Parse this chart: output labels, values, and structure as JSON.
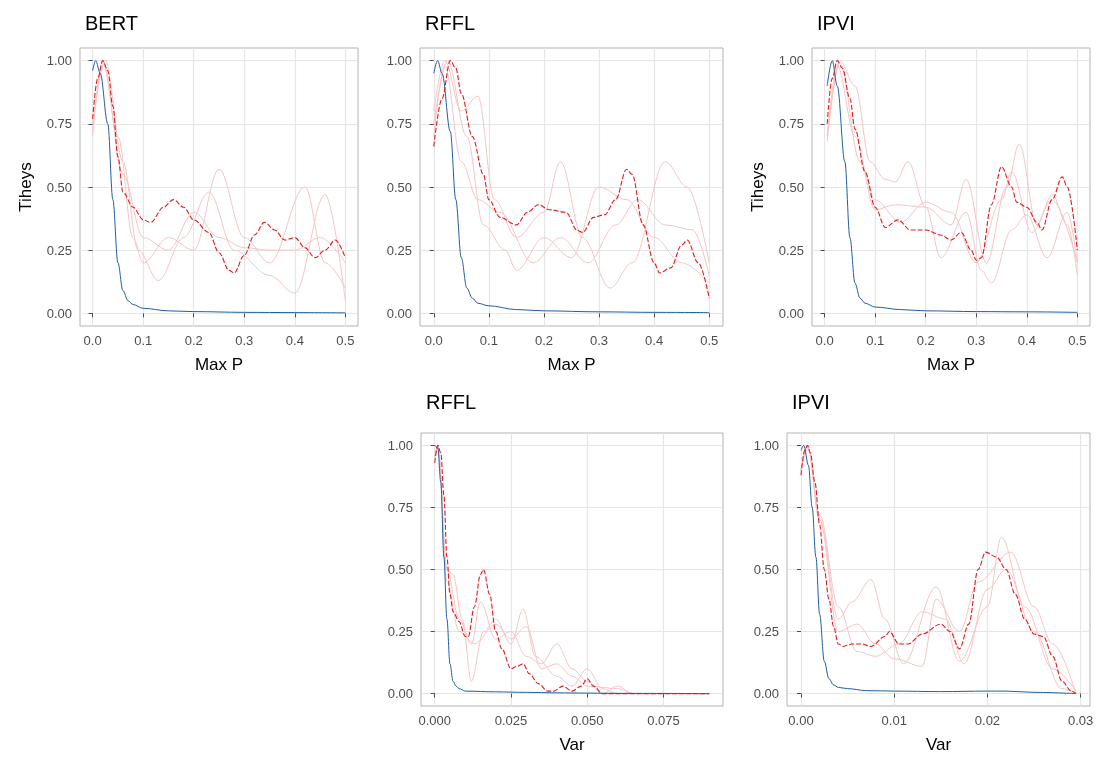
{
  "chart_data": [
    {
      "type": "line",
      "title": "BERT",
      "xlabel": "Max P",
      "ylabel": "Tiheys",
      "xlim": [
        -0.025,
        0.525
      ],
      "xticks": [
        {
          "value": 0,
          "label": "0.0"
        },
        {
          "value": 0.1,
          "label": "0.1"
        },
        {
          "value": 0.2,
          "label": "0.2"
        },
        {
          "value": 0.3,
          "label": "0.3"
        },
        {
          "value": 0.4,
          "label": "0.4"
        },
        {
          "value": 0.5,
          "label": "0.5"
        }
      ],
      "ylim": [
        -0.05,
        1.05
      ],
      "yticks": [
        {
          "value": 0,
          "label": "0.00"
        },
        {
          "value": 0.25,
          "label": "0.25"
        },
        {
          "value": 0.5,
          "label": "0.50"
        },
        {
          "value": 0.75,
          "label": "0.75"
        },
        {
          "value": 1,
          "label": "1.00"
        }
      ],
      "grid": true,
      "series": [
        {
          "color": "#f5c4c4",
          "line_style": "solid",
          "x": [
            0,
            0.02,
            0.05,
            0.08,
            0.1,
            0.15,
            0.2,
            0.25,
            0.3,
            0.35,
            0.42,
            0.46,
            0.5
          ],
          "values": [
            0.7,
            1.0,
            0.7,
            0.3,
            0.2,
            0.3,
            0.25,
            0.57,
            0.3,
            0.2,
            0.5,
            0.2,
            0.1
          ]
        },
        {
          "color": "#f5c4c4",
          "line_style": "solid",
          "x": [
            0,
            0.025,
            0.06,
            0.09,
            0.13,
            0.18,
            0.23,
            0.28,
            0.35,
            0.4,
            0.46,
            0.5
          ],
          "values": [
            0.75,
            1.0,
            0.6,
            0.25,
            0.13,
            0.3,
            0.48,
            0.25,
            0.15,
            0.08,
            0.47,
            0.05
          ]
        },
        {
          "color": "#f5c4c4",
          "line_style": "solid",
          "x": [
            0,
            0.02,
            0.06,
            0.1,
            0.15,
            0.2,
            0.25,
            0.3,
            0.35,
            0.4,
            0.45,
            0.5
          ],
          "values": [
            0.72,
            0.99,
            0.55,
            0.3,
            0.25,
            0.4,
            0.3,
            0.26,
            0.25,
            0.25,
            0.3,
            0.2
          ]
        },
        {
          "color": "#1f5fa0",
          "line_style": "solid",
          "x": [
            0,
            0.006,
            0.015,
            0.03,
            0.04,
            0.05,
            0.06,
            0.07,
            0.08,
            0.1,
            0.15,
            0.2,
            0.3,
            0.4,
            0.5
          ],
          "values": [
            0.96,
            1.0,
            0.95,
            0.75,
            0.45,
            0.2,
            0.09,
            0.05,
            0.035,
            0.02,
            0.01,
            0.007,
            0.004,
            0.003,
            0.002
          ]
        },
        {
          "color": "#e31a1c",
          "line_style": "dashed",
          "x": [
            0,
            0.01,
            0.02,
            0.03,
            0.04,
            0.05,
            0.06,
            0.08,
            0.1,
            0.115,
            0.14,
            0.16,
            0.18,
            0.2,
            0.23,
            0.25,
            0.27,
            0.28,
            0.3,
            0.32,
            0.34,
            0.36,
            0.38,
            0.4,
            0.42,
            0.44,
            0.46,
            0.48,
            0.5
          ],
          "values": [
            0.77,
            0.93,
            1.0,
            0.96,
            0.82,
            0.62,
            0.48,
            0.42,
            0.37,
            0.36,
            0.42,
            0.45,
            0.42,
            0.37,
            0.32,
            0.24,
            0.17,
            0.16,
            0.23,
            0.31,
            0.36,
            0.33,
            0.29,
            0.3,
            0.26,
            0.22,
            0.25,
            0.29,
            0.22
          ]
        }
      ]
    },
    {
      "type": "line",
      "title": "RFFL",
      "xlabel": "Max P",
      "xlim": [
        -0.025,
        0.525
      ],
      "xticks": [
        {
          "value": 0,
          "label": "0.0"
        },
        {
          "value": 0.1,
          "label": "0.1"
        },
        {
          "value": 0.2,
          "label": "0.2"
        },
        {
          "value": 0.3,
          "label": "0.3"
        },
        {
          "value": 0.4,
          "label": "0.4"
        },
        {
          "value": 0.5,
          "label": "0.5"
        }
      ],
      "ylim": [
        -0.05,
        1.05
      ],
      "yticks": [
        {
          "value": 0,
          "label": "0.00"
        },
        {
          "value": 0.25,
          "label": "0.25"
        },
        {
          "value": 0.5,
          "label": "0.50"
        },
        {
          "value": 0.75,
          "label": "0.75"
        },
        {
          "value": 1,
          "label": "1.00"
        }
      ],
      "grid": true,
      "series": [
        {
          "color": "#f5c4c4",
          "line_style": "solid",
          "x": [
            0,
            0.02,
            0.05,
            0.08,
            0.11,
            0.15,
            0.2,
            0.23,
            0.27,
            0.32,
            0.36,
            0.42,
            0.46,
            0.5
          ],
          "values": [
            0.8,
            1.0,
            0.8,
            0.86,
            0.45,
            0.3,
            0.4,
            0.6,
            0.3,
            0.1,
            0.2,
            0.6,
            0.5,
            0.2
          ]
        },
        {
          "color": "#f5c4c4",
          "line_style": "solid",
          "x": [
            0,
            0.025,
            0.06,
            0.09,
            0.13,
            0.15,
            0.2,
            0.25,
            0.3,
            0.35,
            0.4,
            0.45,
            0.5
          ],
          "values": [
            0.75,
            1.0,
            0.7,
            0.35,
            0.25,
            0.17,
            0.3,
            0.22,
            0.5,
            0.45,
            0.3,
            0.2,
            0.12
          ]
        },
        {
          "color": "#f5c4c4",
          "line_style": "solid",
          "x": [
            0,
            0.02,
            0.05,
            0.08,
            0.12,
            0.18,
            0.23,
            0.28,
            0.33,
            0.37,
            0.42,
            0.47,
            0.5
          ],
          "values": [
            0.7,
            0.98,
            0.6,
            0.45,
            0.4,
            0.2,
            0.3,
            0.2,
            0.35,
            0.45,
            0.35,
            0.33,
            0.15
          ]
        },
        {
          "color": "#1f5fa0",
          "line_style": "solid",
          "x": [
            0,
            0.007,
            0.015,
            0.03,
            0.04,
            0.05,
            0.06,
            0.07,
            0.08,
            0.1,
            0.15,
            0.2,
            0.3,
            0.4,
            0.5
          ],
          "values": [
            0.95,
            1.0,
            0.95,
            0.72,
            0.45,
            0.22,
            0.1,
            0.06,
            0.04,
            0.03,
            0.015,
            0.01,
            0.006,
            0.004,
            0.003
          ]
        },
        {
          "color": "#e31a1c",
          "line_style": "dashed",
          "x": [
            0,
            0.015,
            0.03,
            0.04,
            0.05,
            0.07,
            0.09,
            0.1,
            0.12,
            0.15,
            0.17,
            0.19,
            0.21,
            0.24,
            0.26,
            0.27,
            0.29,
            0.31,
            0.33,
            0.35,
            0.36,
            0.38,
            0.4,
            0.41,
            0.43,
            0.45,
            0.46,
            0.48,
            0.5
          ],
          "values": [
            0.66,
            0.85,
            1.0,
            0.97,
            0.87,
            0.7,
            0.55,
            0.45,
            0.38,
            0.35,
            0.4,
            0.43,
            0.41,
            0.4,
            0.33,
            0.32,
            0.38,
            0.39,
            0.45,
            0.57,
            0.55,
            0.35,
            0.2,
            0.16,
            0.18,
            0.27,
            0.29,
            0.2,
            0.06
          ]
        }
      ]
    },
    {
      "type": "line",
      "title": "IPVI",
      "xlabel": "Max P",
      "ylabel": "Tiheys",
      "xlim": [
        -0.025,
        0.525
      ],
      "xticks": [
        {
          "value": 0,
          "label": "0.0"
        },
        {
          "value": 0.1,
          "label": "0.1"
        },
        {
          "value": 0.2,
          "label": "0.2"
        },
        {
          "value": 0.3,
          "label": "0.3"
        },
        {
          "value": 0.4,
          "label": "0.4"
        },
        {
          "value": 0.5,
          "label": "0.5"
        }
      ],
      "ylim": [
        -0.05,
        1.05
      ],
      "yticks": [
        {
          "value": 0,
          "label": "0.00"
        },
        {
          "value": 0.25,
          "label": "0.25"
        },
        {
          "value": 0.5,
          "label": "0.50"
        },
        {
          "value": 0.75,
          "label": "0.75"
        },
        {
          "value": 1,
          "label": "1.00"
        }
      ],
      "grid": true,
      "series": [
        {
          "color": "#f5c4c4",
          "line_style": "solid",
          "x": [
            0.005,
            0.03,
            0.06,
            0.09,
            0.12,
            0.14,
            0.165,
            0.2,
            0.25,
            0.28,
            0.32,
            0.36,
            0.385,
            0.42,
            0.45,
            0.48,
            0.5
          ],
          "values": [
            0.68,
            1.0,
            0.9,
            0.6,
            0.53,
            0.52,
            0.6,
            0.42,
            0.35,
            0.53,
            0.2,
            0.5,
            0.67,
            0.35,
            0.47,
            0.35,
            0.15
          ]
        },
        {
          "color": "#f5c4c4",
          "line_style": "solid",
          "x": [
            0.005,
            0.025,
            0.06,
            0.1,
            0.14,
            0.2,
            0.23,
            0.28,
            0.31,
            0.33,
            0.37,
            0.4,
            0.44,
            0.48,
            0.5
          ],
          "values": [
            0.7,
            0.98,
            0.7,
            0.41,
            0.43,
            0.42,
            0.22,
            0.4,
            0.17,
            0.12,
            0.33,
            0.39,
            0.22,
            0.4,
            0.2
          ]
        },
        {
          "color": "#f5c4c4",
          "line_style": "solid",
          "x": [
            0.005,
            0.03,
            0.07,
            0.1,
            0.15,
            0.2,
            0.25,
            0.3,
            0.35,
            0.37,
            0.41,
            0.45,
            0.5
          ],
          "values": [
            0.7,
            0.99,
            0.6,
            0.45,
            0.36,
            0.44,
            0.4,
            0.2,
            0.45,
            0.56,
            0.32,
            0.45,
            0.2
          ]
        },
        {
          "color": "#1f5fa0",
          "line_style": "solid",
          "x": [
            0.005,
            0.015,
            0.025,
            0.04,
            0.05,
            0.06,
            0.07,
            0.08,
            0.1,
            0.15,
            0.2,
            0.3,
            0.4,
            0.5
          ],
          "values": [
            0.9,
            1.0,
            0.9,
            0.6,
            0.3,
            0.12,
            0.06,
            0.04,
            0.025,
            0.015,
            0.01,
            0.007,
            0.006,
            0.004
          ]
        },
        {
          "color": "#e31a1c",
          "line_style": "dashed",
          "x": [
            0.005,
            0.015,
            0.025,
            0.035,
            0.05,
            0.06,
            0.08,
            0.1,
            0.12,
            0.145,
            0.17,
            0.2,
            0.23,
            0.25,
            0.27,
            0.29,
            0.3,
            0.31,
            0.33,
            0.35,
            0.37,
            0.38,
            0.4,
            0.42,
            0.43,
            0.45,
            0.47,
            0.48,
            0.5
          ],
          "values": [
            0.75,
            0.93,
            1.0,
            0.97,
            0.85,
            0.73,
            0.56,
            0.42,
            0.34,
            0.37,
            0.33,
            0.33,
            0.31,
            0.29,
            0.32,
            0.25,
            0.21,
            0.22,
            0.43,
            0.58,
            0.5,
            0.44,
            0.42,
            0.36,
            0.33,
            0.45,
            0.54,
            0.5,
            0.25
          ]
        }
      ]
    },
    {
      "type": "line",
      "title": "RFFL",
      "xlabel": "Var",
      "xlim": [
        -0.0045,
        0.0945
      ],
      "xticks": [
        {
          "value": 0,
          "label": "0.000"
        },
        {
          "value": 0.025,
          "label": "0.025"
        },
        {
          "value": 0.05,
          "label": "0.050"
        },
        {
          "value": 0.075,
          "label": "0.075"
        }
      ],
      "ylim": [
        -0.05,
        1.05
      ],
      "yticks": [
        {
          "value": 0,
          "label": "0.00"
        },
        {
          "value": 0.25,
          "label": "0.25"
        },
        {
          "value": 0.5,
          "label": "0.50"
        },
        {
          "value": 0.75,
          "label": "0.75"
        },
        {
          "value": 1,
          "label": "1.00"
        }
      ],
      "grid": true,
      "series": [
        {
          "color": "#f5c4c4",
          "line_style": "solid",
          "x": [
            0,
            0.001,
            0.004,
            0.006,
            0.009,
            0.012,
            0.016,
            0.02,
            0.025,
            0.029,
            0.033,
            0.04,
            0.045,
            0.05,
            0.055,
            0.06,
            0.09
          ],
          "values": [
            0.95,
            1.0,
            0.5,
            0.48,
            0.3,
            0.05,
            0.25,
            0.3,
            0.2,
            0.34,
            0.15,
            0.07,
            0.03,
            0.1,
            0.02,
            0,
            0
          ]
        },
        {
          "color": "#f5c4c4",
          "line_style": "solid",
          "x": [
            0,
            0.001,
            0.004,
            0.008,
            0.012,
            0.015,
            0.02,
            0.025,
            0.03,
            0.035,
            0.04,
            0.045,
            0.05,
            0.055,
            0.06,
            0.065,
            0.09
          ],
          "values": [
            0.95,
            1.0,
            0.5,
            0.3,
            0.2,
            0.37,
            0.22,
            0.25,
            0.15,
            0.12,
            0.2,
            0.1,
            0.05,
            0,
            0.03,
            0,
            0
          ]
        },
        {
          "color": "#f5c4c4",
          "line_style": "solid",
          "x": [
            0,
            0.001,
            0.004,
            0.008,
            0.013,
            0.02,
            0.025,
            0.03,
            0.035,
            0.04,
            0.045,
            0.05,
            0.06,
            0.065,
            0.09
          ],
          "values": [
            0.95,
            1.0,
            0.45,
            0.25,
            0.2,
            0.28,
            0.22,
            0.27,
            0.1,
            0.12,
            0.07,
            0.03,
            0.02,
            0,
            0
          ]
        },
        {
          "color": "#1f5fa0",
          "line_style": "solid",
          "x": [
            0,
            0.001,
            0.002,
            0.003,
            0.004,
            0.005,
            0.006,
            0.007,
            0.008,
            0.01,
            0.02,
            0.03,
            0.04,
            0.05,
            0.06,
            0.09
          ],
          "values": [
            1.0,
            0.99,
            0.85,
            0.55,
            0.3,
            0.12,
            0.05,
            0.03,
            0.02,
            0.01,
            0.007,
            0.005,
            0.003,
            0.002,
            0.001,
            0
          ]
        },
        {
          "color": "#e31a1c",
          "line_style": "dashed",
          "x": [
            0,
            0.001,
            0.002,
            0.003,
            0.004,
            0.005,
            0.006,
            0.008,
            0.01,
            0.011,
            0.013,
            0.015,
            0.016,
            0.018,
            0.02,
            0.022,
            0.025,
            0.027,
            0.029,
            0.031,
            0.034,
            0.037,
            0.039,
            0.042,
            0.045,
            0.048,
            0.05,
            0.052,
            0.055,
            0.06,
            0.09
          ],
          "values": [
            0.93,
            1.0,
            0.97,
            0.8,
            0.55,
            0.4,
            0.33,
            0.29,
            0.23,
            0.23,
            0.35,
            0.48,
            0.5,
            0.4,
            0.25,
            0.18,
            0.1,
            0.11,
            0.12,
            0.08,
            0.04,
            0.01,
            0.01,
            0.03,
            0.01,
            0.03,
            0.06,
            0.03,
            0,
            0,
            0
          ]
        }
      ]
    },
    {
      "type": "line",
      "title": "IPVI",
      "xlabel": "Var",
      "xlim": [
        -0.0015,
        0.031
      ],
      "xticks": [
        {
          "value": 0,
          "label": "0.00"
        },
        {
          "value": 0.01,
          "label": "0.01"
        },
        {
          "value": 0.02,
          "label": "0.02"
        },
        {
          "value": 0.03,
          "label": "0.03"
        }
      ],
      "ylim": [
        -0.05,
        1.05
      ],
      "yticks": [
        {
          "value": 0,
          "label": "0.00"
        },
        {
          "value": 0.25,
          "label": "0.25"
        },
        {
          "value": 0.5,
          "label": "0.50"
        },
        {
          "value": 0.75,
          "label": "0.75"
        },
        {
          "value": 1,
          "label": "1.00"
        }
      ],
      "grid": true,
      "series": [
        {
          "color": "#f5c4c4",
          "line_style": "solid",
          "x": [
            0,
            0.0007,
            0.002,
            0.004,
            0.0055,
            0.0075,
            0.009,
            0.011,
            0.0145,
            0.017,
            0.02,
            0.0215,
            0.024,
            0.027,
            0.0295
          ],
          "values": [
            0.9,
            1.0,
            0.7,
            0.3,
            0.37,
            0.46,
            0.3,
            0.12,
            0.43,
            0.13,
            0.35,
            0.63,
            0.35,
            0.1,
            0.01
          ]
        },
        {
          "color": "#f5c4c4",
          "line_style": "solid",
          "x": [
            0,
            0.0007,
            0.002,
            0.004,
            0.006,
            0.008,
            0.01,
            0.013,
            0.0145,
            0.017,
            0.019,
            0.0225,
            0.025,
            0.027,
            0.0295
          ],
          "values": [
            0.9,
            1.0,
            0.7,
            0.25,
            0.28,
            0.2,
            0.14,
            0.11,
            0.38,
            0.25,
            0.45,
            0.57,
            0.35,
            0.2,
            0
          ]
        },
        {
          "color": "#f5c4c4",
          "line_style": "solid",
          "x": [
            0,
            0.0007,
            0.002,
            0.004,
            0.006,
            0.008,
            0.0105,
            0.013,
            0.0155,
            0.0175,
            0.02,
            0.022,
            0.025,
            0.028,
            0.0295
          ],
          "values": [
            0.9,
            0.99,
            0.72,
            0.35,
            0.17,
            0.15,
            0.2,
            0.33,
            0.3,
            0.12,
            0.42,
            0.5,
            0.25,
            0.02,
            0
          ]
        },
        {
          "color": "#1f5fa0",
          "line_style": "solid",
          "x": [
            0,
            0.0003,
            0.0008,
            0.0012,
            0.0016,
            0.002,
            0.0025,
            0.003,
            0.0035,
            0.004,
            0.005,
            0.007,
            0.01,
            0.015,
            0.02,
            0.022,
            0.025,
            0.0295
          ],
          "values": [
            0.98,
            1.0,
            0.92,
            0.75,
            0.55,
            0.32,
            0.13,
            0.06,
            0.035,
            0.025,
            0.02,
            0.012,
            0.01,
            0.008,
            0.01,
            0.01,
            0.005,
            0
          ]
        },
        {
          "color": "#e31a1c",
          "line_style": "dashed",
          "x": [
            0,
            0.0004,
            0.0007,
            0.001,
            0.0015,
            0.002,
            0.0025,
            0.003,
            0.0035,
            0.004,
            0.0045,
            0.0055,
            0.0065,
            0.0075,
            0.009,
            0.0095,
            0.0105,
            0.0115,
            0.013,
            0.015,
            0.016,
            0.017,
            0.018,
            0.019,
            0.0198,
            0.021,
            0.022,
            0.023,
            0.024,
            0.025,
            0.026,
            0.027,
            0.028,
            0.029,
            0.0295
          ],
          "values": [
            0.88,
            0.98,
            1.0,
            0.97,
            0.85,
            0.68,
            0.5,
            0.38,
            0.27,
            0.2,
            0.19,
            0.2,
            0.2,
            0.19,
            0.23,
            0.25,
            0.2,
            0.2,
            0.24,
            0.28,
            0.25,
            0.18,
            0.28,
            0.5,
            0.57,
            0.55,
            0.5,
            0.4,
            0.3,
            0.24,
            0.23,
            0.15,
            0.05,
            0.01,
            0
          ]
        }
      ]
    }
  ]
}
